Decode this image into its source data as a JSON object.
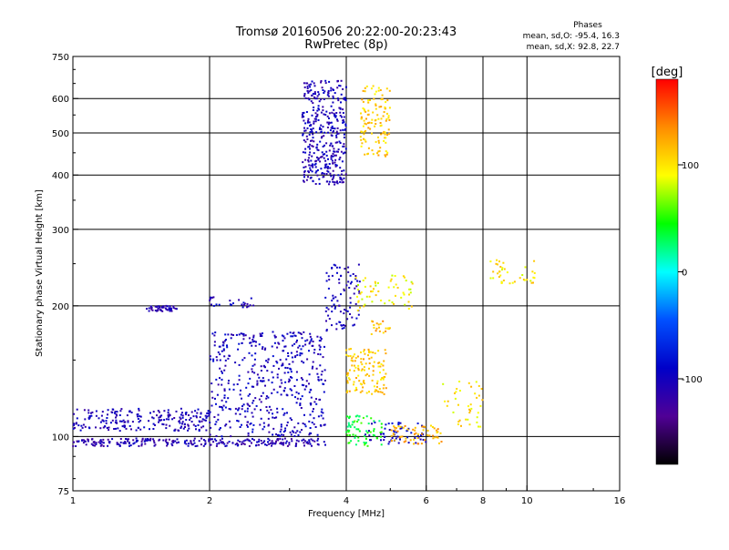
{
  "chart_data": {
    "type": "scatter",
    "title": "Tromsø 20160506 20:22:00-20:23:43",
    "subtitle": "RwPretec (8p)",
    "xlabel": "Frequency [MHz]",
    "ylabel": "Stationary phase Virtual Height [km]",
    "x_scale": "log",
    "y_scale": "log",
    "xlim": [
      1,
      16
    ],
    "ylim": [
      75,
      750
    ],
    "x_ticks": [
      1,
      2,
      4,
      6,
      8,
      10,
      16
    ],
    "x_tick_labels": [
      "1",
      "2",
      "4",
      "6",
      "8",
      "10",
      "16"
    ],
    "y_ticks": [
      75,
      100,
      200,
      300,
      400,
      500,
      600,
      750
    ],
    "y_tick_labels": [
      "75",
      "100",
      "200",
      "300",
      "400",
      "500",
      "600",
      "750"
    ],
    "x_gridlines": [
      2,
      4,
      6,
      8,
      10
    ],
    "y_gridlines": [
      100,
      200,
      300,
      400,
      500,
      600
    ],
    "grid": true,
    "stats": {
      "heading": "Phases",
      "line_o": "mean, sd,O: -95.4, 16.3",
      "line_x": "mean, sd,X: 92.8, 22.7"
    },
    "colorbar": {
      "label": "[deg]",
      "range": [
        -180,
        180
      ],
      "ticks": [
        100,
        0,
        -100
      ],
      "tick_labels": [
        "100",
        "0",
        "-100"
      ],
      "colors": [
        "#ff0000",
        "#ff8c00",
        "#ffff00",
        "#00ff00",
        "#00ffff",
        "#0050ff",
        "#0000c8",
        "#500096",
        "#000000"
      ]
    },
    "clusters": [
      {
        "f": [
          1.0,
          2.0
        ],
        "h": [
          103,
          116
        ],
        "phase": -105,
        "n": 220
      },
      {
        "f": [
          1.0,
          3.6
        ],
        "h": [
          95,
          99
        ],
        "phase": -110,
        "n": 260
      },
      {
        "f": [
          2.0,
          3.6
        ],
        "h": [
          100,
          175
        ],
        "phase": -100,
        "n": 480
      },
      {
        "f": [
          1.45,
          1.7
        ],
        "h": [
          194,
          200
        ],
        "phase": -110,
        "n": 45
      },
      {
        "f": [
          2.0,
          2.5
        ],
        "h": [
          198,
          210
        ],
        "phase": -100,
        "n": 25
      },
      {
        "f": [
          3.2,
          4.0
        ],
        "h": [
          380,
          660
        ],
        "phase": -105,
        "n": 380
      },
      {
        "f": [
          3.6,
          4.3
        ],
        "h": [
          175,
          250
        ],
        "phase": -100,
        "n": 90
      },
      {
        "f": [
          4.0,
          4.9
        ],
        "h": [
          125,
          160
        ],
        "phase": 110,
        "n": 120
      },
      {
        "f": [
          4.3,
          5.0
        ],
        "h": [
          440,
          650
        ],
        "phase": 110,
        "n": 120
      },
      {
        "f": [
          4.2,
          5.6
        ],
        "h": [
          195,
          235
        ],
        "phase": 95,
        "n": 60
      },
      {
        "f": [
          4.0,
          4.8
        ],
        "h": [
          95,
          112
        ],
        "phase": 40,
        "n": 70
      },
      {
        "f": [
          4.4,
          6.0
        ],
        "h": [
          96,
          108
        ],
        "phase": -95,
        "n": 60
      },
      {
        "f": [
          5.0,
          6.5
        ],
        "h": [
          96,
          106
        ],
        "phase": 120,
        "n": 60
      },
      {
        "f": [
          8.3,
          10.5
        ],
        "h": [
          225,
          255
        ],
        "phase": 100,
        "n": 40
      },
      {
        "f": [
          6.5,
          8.0
        ],
        "h": [
          105,
          135
        ],
        "phase": 100,
        "n": 40
      },
      {
        "f": [
          4.5,
          5.0
        ],
        "h": [
          170,
          185
        ],
        "phase": 120,
        "n": 20
      }
    ]
  }
}
